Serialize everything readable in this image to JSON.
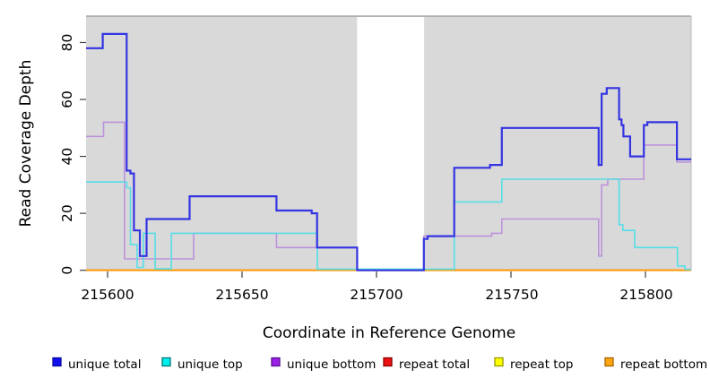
{
  "figure": {
    "background": "#FFFFFF",
    "plot_background": "#D9D9D9",
    "xlabel": "Coordinate in Reference Genome",
    "ylabel": "Read Coverage Depth"
  },
  "chart_data": {
    "type": "line",
    "subtype": "step",
    "title": "",
    "xlabel": "Coordinate in Reference Genome",
    "ylabel": "Read Coverage Depth",
    "xlim": [
      215592,
      215817
    ],
    "ylim": [
      0,
      89
    ],
    "grid": false,
    "legend_position": "bottom",
    "white_band": {
      "x_start": 215692.8,
      "x_end": 215717.7
    },
    "xticks": [
      {
        "value": 215600,
        "label": "215600"
      },
      {
        "value": 215650,
        "label": "215650"
      },
      {
        "value": 215700,
        "label": "215700"
      },
      {
        "value": 215750,
        "label": "215750"
      },
      {
        "value": 215800,
        "label": "215800"
      }
    ],
    "yticks": [
      {
        "value": 0,
        "label": "0"
      },
      {
        "value": 20,
        "label": "20"
      },
      {
        "value": 40,
        "label": "40"
      },
      {
        "value": 60,
        "label": "60"
      },
      {
        "value": 80,
        "label": "80"
      }
    ],
    "draw_order": [
      "repeat total",
      "repeat top",
      "repeat bottom",
      "unique bottom",
      "unique top",
      "unique total"
    ],
    "series": [
      {
        "name": "unique total",
        "color": "#3434E2",
        "width": 2.2,
        "points": [
          [
            215592,
            78
          ],
          [
            215598.2,
            83
          ],
          [
            215607.1,
            35
          ],
          [
            215608.5,
            34
          ],
          [
            215609.8,
            14
          ],
          [
            215612,
            5
          ],
          [
            215614.5,
            18
          ],
          [
            215630.5,
            26
          ],
          [
            215662.8,
            21
          ],
          [
            215675.9,
            20
          ],
          [
            215677.9,
            8
          ],
          [
            215692.8,
            0
          ],
          [
            215717.6,
            11
          ],
          [
            215719,
            12
          ],
          [
            215728.9,
            36
          ],
          [
            215742.2,
            37
          ],
          [
            215746.6,
            50
          ],
          [
            215782.6,
            37
          ],
          [
            215783.7,
            62
          ],
          [
            215785.6,
            64
          ],
          [
            215790.2,
            53
          ],
          [
            215791.1,
            51
          ],
          [
            215791.8,
            47
          ],
          [
            215794.3,
            40
          ],
          [
            215799.4,
            51
          ],
          [
            215800.7,
            52
          ],
          [
            215811.7,
            39
          ]
        ]
      },
      {
        "name": "unique top",
        "color": "#55DEE6",
        "width": 1.6,
        "points": [
          [
            215592,
            31
          ],
          [
            215607.1,
            29
          ],
          [
            215608.5,
            9
          ],
          [
            215611,
            1
          ],
          [
            215613.3,
            13
          ],
          [
            215617.7,
            0.5
          ],
          [
            215623.7,
            13
          ],
          [
            215678,
            0.4
          ],
          [
            215728.9,
            24
          ],
          [
            215746.6,
            32
          ],
          [
            215790.2,
            16
          ],
          [
            215791.6,
            14
          ],
          [
            215796,
            8
          ],
          [
            215811.9,
            1.5
          ],
          [
            215814.7,
            0.3
          ]
        ]
      },
      {
        "name": "unique bottom",
        "color": "#BC92DB",
        "width": 1.6,
        "points": [
          [
            215592,
            47
          ],
          [
            215598.5,
            52
          ],
          [
            215606.3,
            4
          ],
          [
            215632,
            13
          ],
          [
            215662.8,
            8
          ],
          [
            215692.8,
            0
          ],
          [
            215717.6,
            12
          ],
          [
            215742.8,
            13
          ],
          [
            215746.6,
            18
          ],
          [
            215782.6,
            5
          ],
          [
            215783.7,
            30
          ],
          [
            215786,
            32
          ],
          [
            215799.4,
            44
          ],
          [
            215811.7,
            38
          ]
        ]
      },
      {
        "name": "repeat total",
        "color": "#E60000",
        "width": 1.6,
        "points": [
          [
            215592,
            0
          ]
        ]
      },
      {
        "name": "repeat top",
        "color": "#FFFF00",
        "width": 1.6,
        "points": [
          [
            215592,
            0
          ]
        ]
      },
      {
        "name": "repeat bottom",
        "color": "#FF9800",
        "width": 1.8,
        "points": [
          [
            215592,
            0
          ]
        ]
      }
    ]
  },
  "legend": {
    "items": [
      {
        "label": "unique total",
        "fill": "#1010EE",
        "border": "#0909A8"
      },
      {
        "label": "unique top",
        "fill": "#00EFEF",
        "border": "#007777"
      },
      {
        "label": "unique bottom",
        "fill": "#9C1FE8",
        "border": "#5A0F8F"
      },
      {
        "label": "repeat total",
        "fill": "#EE1111",
        "border": "#8B0000"
      },
      {
        "label": "repeat top",
        "fill": "#FFFF00",
        "border": "#999900"
      },
      {
        "label": "repeat bottom",
        "fill": "#FFA510",
        "border": "#A66400"
      }
    ]
  }
}
